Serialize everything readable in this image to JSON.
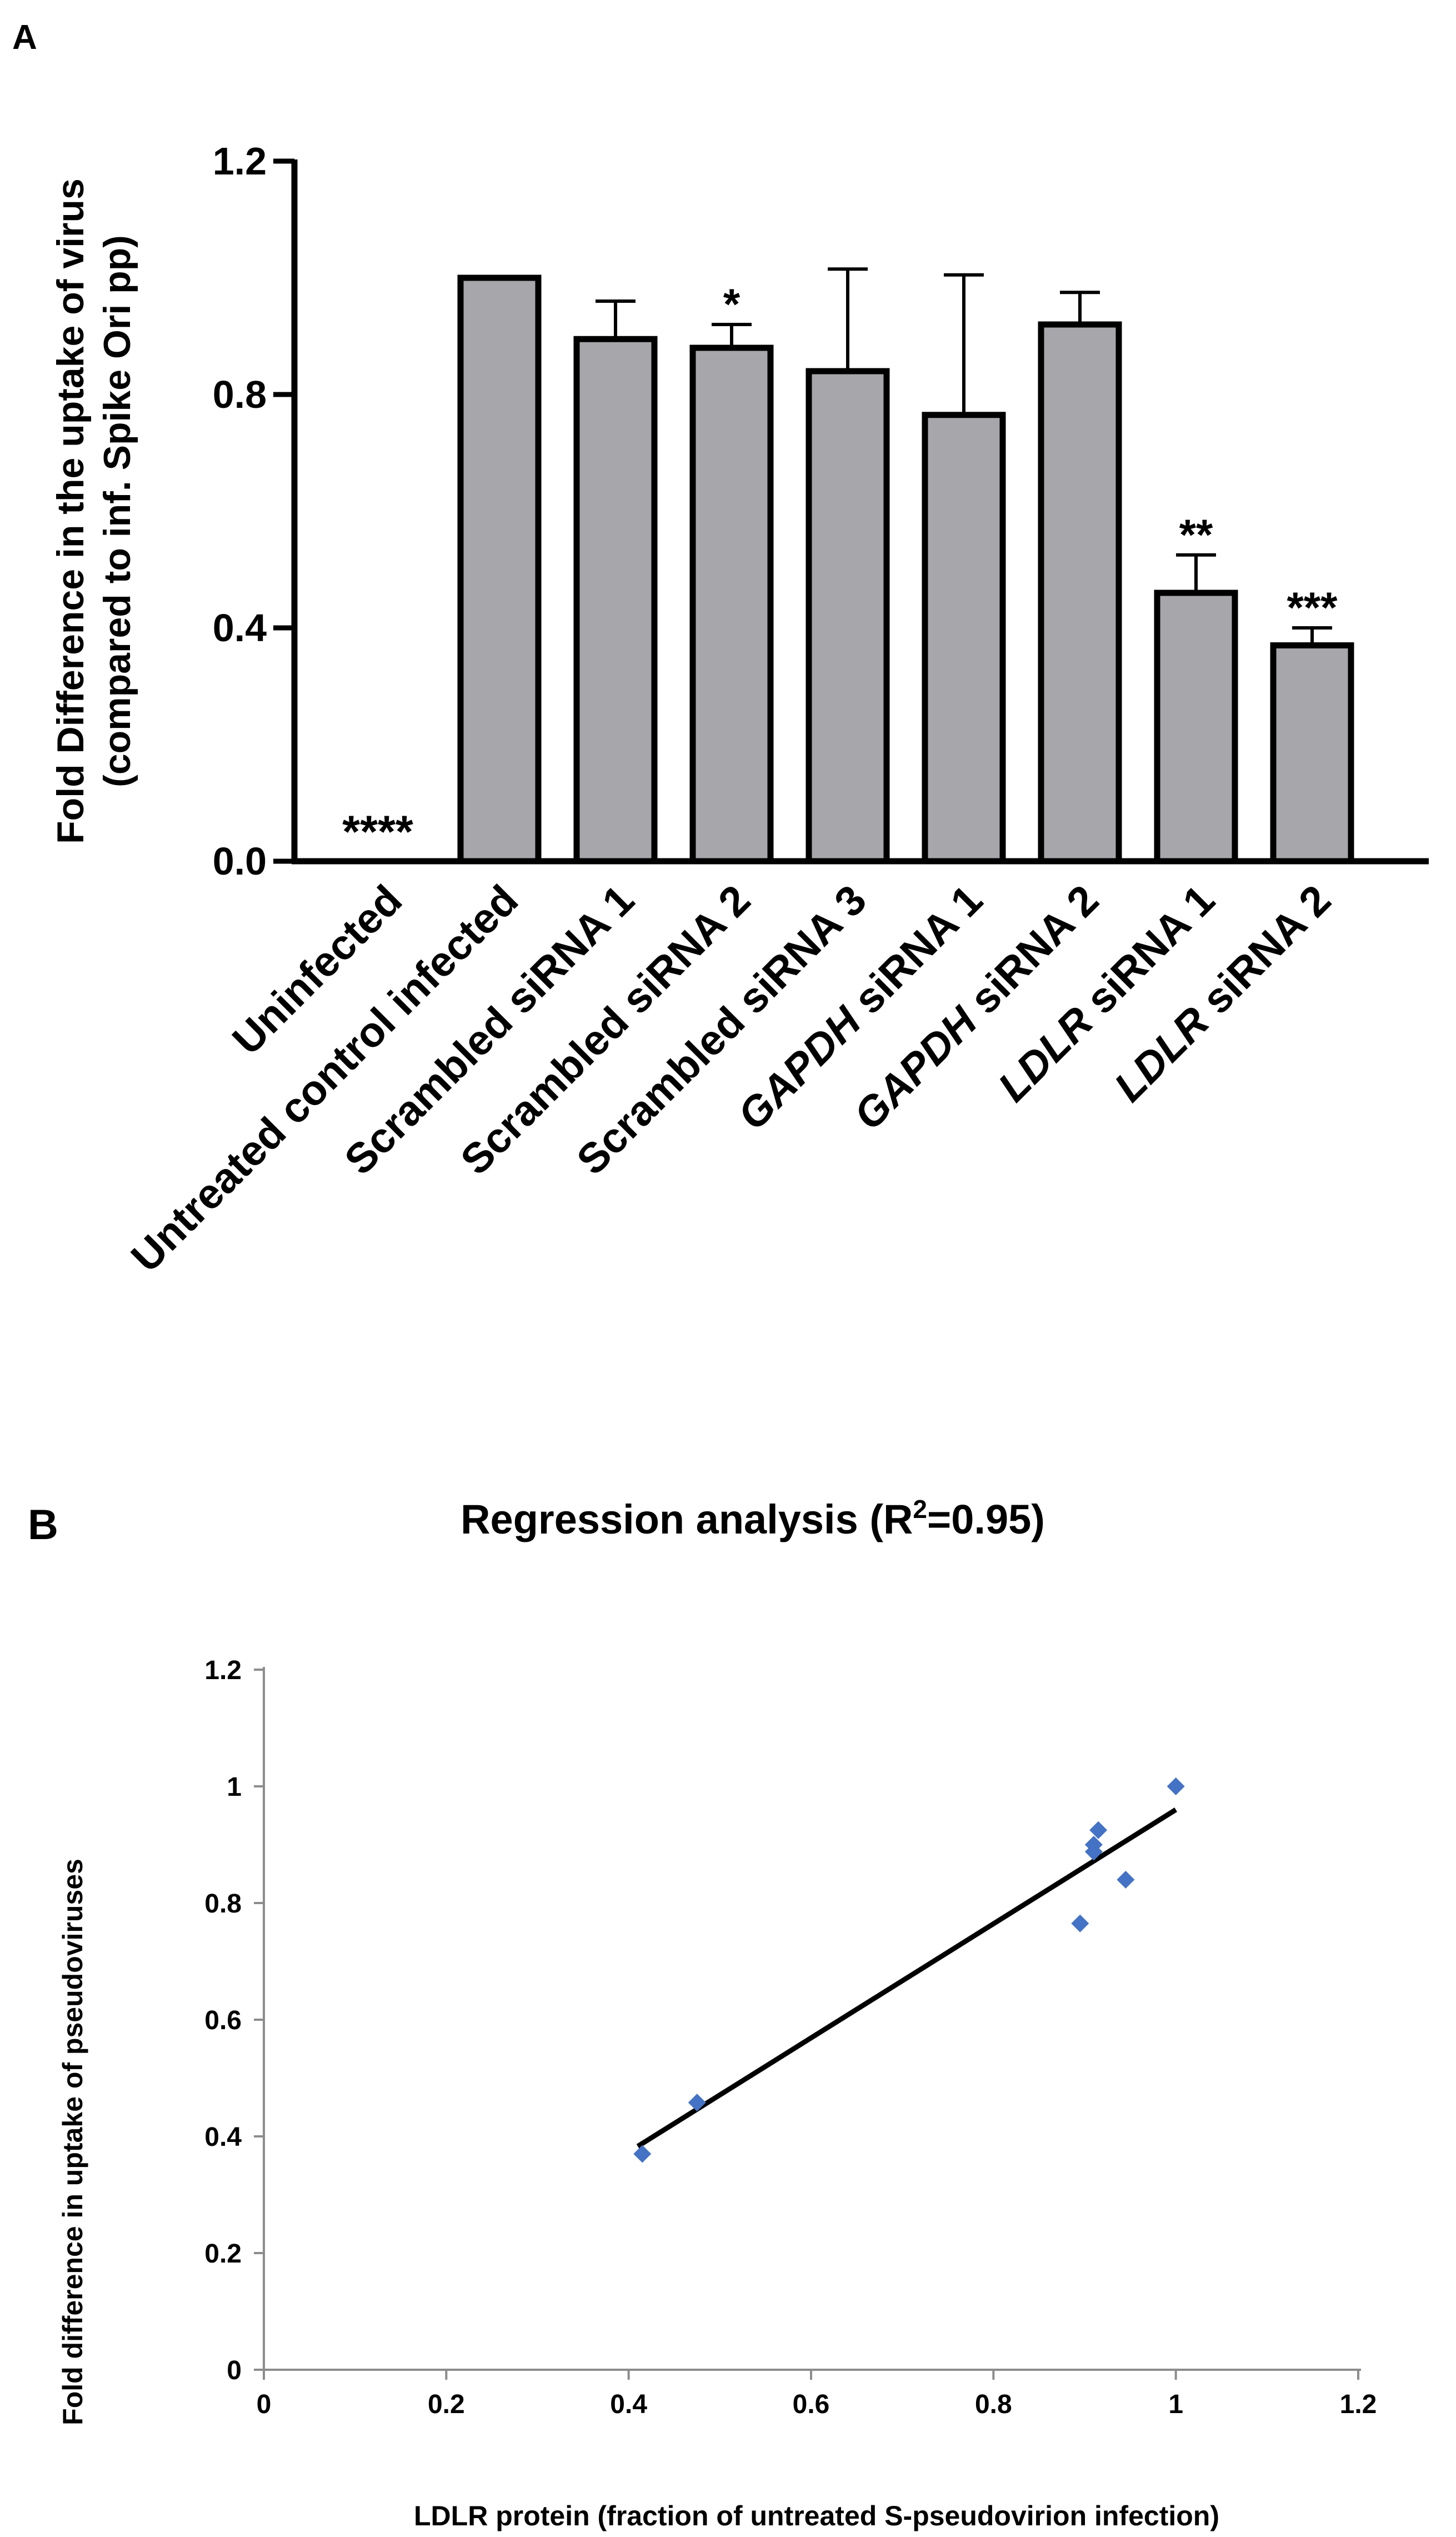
{
  "chart_data": [
    {
      "panel": "A",
      "type": "bar",
      "ylabel_line1": "Fold Difference in the uptake of virus",
      "ylabel_line2": "(compared to inf. Spike Ori pp)",
      "ylim": [
        0,
        1.2
      ],
      "yticks": [
        "0.0",
        "0.4",
        "0.8",
        "1.2"
      ],
      "ytick_values": [
        0,
        0.4,
        0.8,
        1.2
      ],
      "categories": [
        {
          "label": "Uninfected",
          "italic": "",
          "rest": "Uninfected",
          "value": 0,
          "err": 0,
          "sig": "****"
        },
        {
          "label": "Untreated control infected",
          "italic": "",
          "rest": "Untreated control infected",
          "value": 1.0,
          "err": 0,
          "sig": ""
        },
        {
          "label": "Scrambled siRNA 1",
          "italic": "",
          "rest": "Scrambled siRNA 1",
          "value": 0.895,
          "err": 0.065,
          "sig": ""
        },
        {
          "label": "Scrambled siRNA 2",
          "italic": "",
          "rest": "Scrambled siRNA 2",
          "value": 0.88,
          "err": 0.04,
          "sig": "*"
        },
        {
          "label": "Scrambled siRNA 3",
          "italic": "",
          "rest": "Scrambled siRNA 3",
          "value": 0.84,
          "err": 0.175,
          "sig": ""
        },
        {
          "label": "GAPDH siRNA 1",
          "italic": "GAPDH",
          "rest": " siRNA 1",
          "value": 0.765,
          "err": 0.24,
          "sig": ""
        },
        {
          "label": "GAPDH siRNA 2",
          "italic": "GAPDH",
          "rest": " siRNA 2",
          "value": 0.92,
          "err": 0.055,
          "sig": ""
        },
        {
          "label": "LDLR siRNA 1",
          "italic": "LDLR",
          "rest": " siRNA 1",
          "value": 0.46,
          "err": 0.065,
          "sig": "**"
        },
        {
          "label": "LDLR siRNA 2",
          "italic": "LDLR",
          "rest": " siRNA 2",
          "value": 0.37,
          "err": 0.03,
          "sig": "***"
        }
      ]
    },
    {
      "panel": "B",
      "type": "scatter",
      "title_prefix": "Regression analysis (R",
      "title_sup": "2",
      "title_suffix": "=0.95)",
      "xlabel": "LDLR protein (fraction of  untreated  S-pseudovirion infection)",
      "ylabel": "Fold difference in uptake of pseudoviruses",
      "xlim": [
        0,
        1.2
      ],
      "ylim": [
        0,
        1.2
      ],
      "xticks": [
        "0",
        "0.2",
        "0.4",
        "0.6",
        "0.8",
        "1",
        "1.2"
      ],
      "xtick_values": [
        0,
        0.2,
        0.4,
        0.6,
        0.8,
        1,
        1.2
      ],
      "yticks": [
        "0",
        "0.2",
        "0.4",
        "0.6",
        "0.8",
        "1",
        "1.2"
      ],
      "ytick_values": [
        0,
        0.2,
        0.4,
        0.6,
        0.8,
        1,
        1.2
      ],
      "points": [
        {
          "x": 1.0,
          "y": 1.0
        },
        {
          "x": 0.915,
          "y": 0.925
        },
        {
          "x": 0.91,
          "y": 0.9
        },
        {
          "x": 0.91,
          "y": 0.888
        },
        {
          "x": 0.945,
          "y": 0.84
        },
        {
          "x": 0.895,
          "y": 0.765
        },
        {
          "x": 0.475,
          "y": 0.458
        },
        {
          "x": 0.415,
          "y": 0.37
        }
      ],
      "trendline": {
        "x": [
          0.41,
          1.0
        ],
        "y": [
          0.383,
          0.96
        ]
      },
      "marker_color": "#4472C4"
    }
  ],
  "panel_labels": {
    "a": "A",
    "b": "B"
  }
}
